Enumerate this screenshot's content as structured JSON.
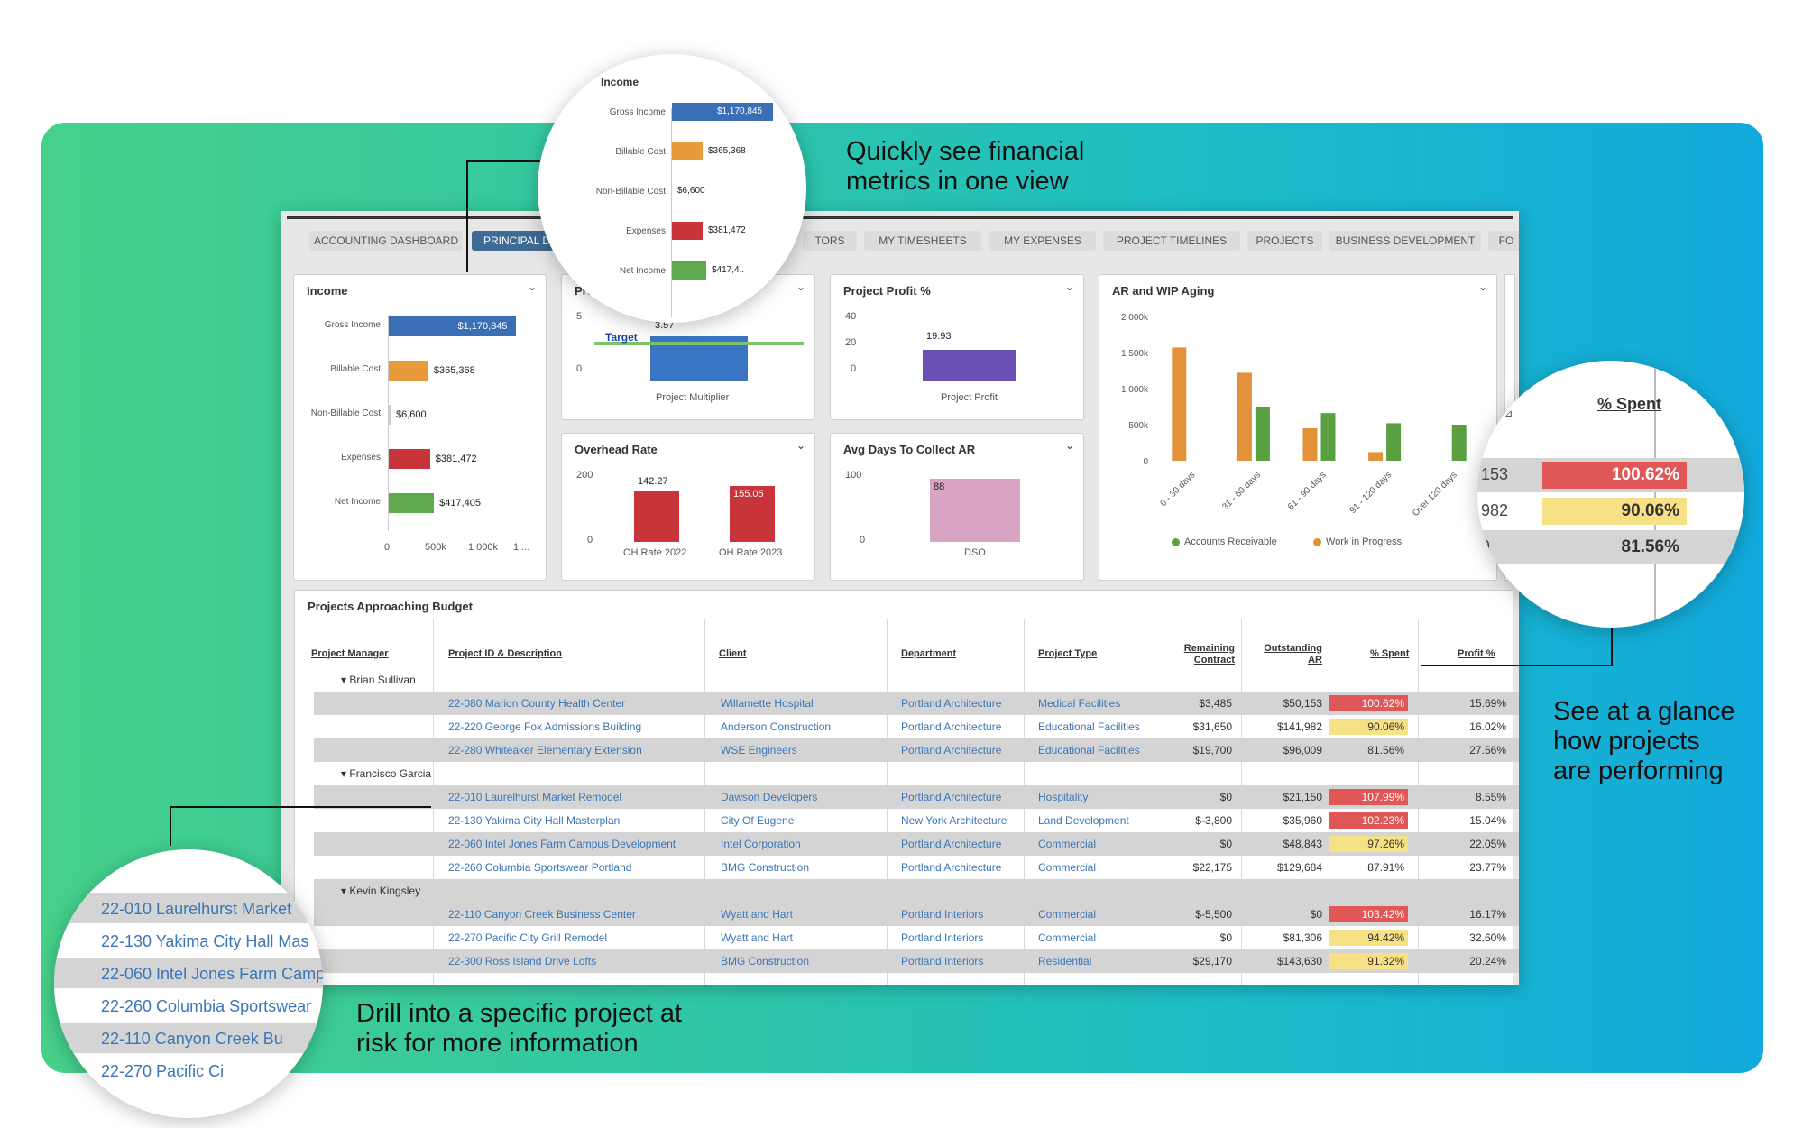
{
  "callouts": {
    "financial": [
      "Quickly see financial",
      "metrics in one view"
    ],
    "glance": [
      "See at a glance",
      "how projects",
      "are performing"
    ],
    "drill": [
      "Drill into a specific project at",
      "risk for more information"
    ]
  },
  "tabs": [
    "ACCOUNTING DASHBOARD",
    "PRINCIPAL D",
    "TORS",
    "MY TIMESHEETS",
    "MY EXPENSES",
    "PROJECT TIMELINES",
    "PROJECTS",
    "BUSINESS DEVELOPMENT",
    "FO"
  ],
  "income": {
    "title": "Income",
    "rows": [
      {
        "label": "Gross Income",
        "value": "$1,170,845",
        "amount": 1170845,
        "color": "#3a6fb5"
      },
      {
        "label": "Billable Cost",
        "value": "$365,368",
        "amount": 365368,
        "color": "#e89a3c"
      },
      {
        "label": "Non-Billable Cost",
        "value": "$6,600",
        "amount": 6600,
        "color": "#cccccc"
      },
      {
        "label": "Expenses",
        "value": "$381,472",
        "amount": 381472,
        "color": "#c9343b"
      },
      {
        "label": "Net Income",
        "value": "$417,405",
        "amount": 417405,
        "color": "#5ea84d"
      }
    ],
    "xticks": [
      "0",
      "500k",
      "1 000k",
      "1 ..."
    ]
  },
  "zoom_income": {
    "title": "Income",
    "rows": [
      {
        "label": "Gross Income",
        "value": "$1,170,845",
        "color": "#3a6fb5"
      },
      {
        "label": "Billable Cost",
        "value": "$365,368",
        "color": "#e89a3c"
      },
      {
        "label": "Non-Billable Cost",
        "value": "$6,600",
        "color": "#cccccc"
      },
      {
        "label": "Expenses",
        "value": "$381,472",
        "color": "#c9343b"
      },
      {
        "label": "Net Income",
        "value": "$417,4..",
        "color": "#5ea84d"
      }
    ]
  },
  "project_multiplier": {
    "title": "Proje",
    "ymax": "5",
    "ymin": "0",
    "target_label": "Target",
    "value": 3.57,
    "value_label": "3.57",
    "xlabel": "Project Multiplier"
  },
  "project_profit": {
    "title": "Project Profit %",
    "yticks": [
      "40",
      "20",
      "0"
    ],
    "value": 19.93,
    "value_label": "19.93",
    "xlabel": "Project Profit"
  },
  "overhead": {
    "title": "Overhead Rate",
    "ymax": "200",
    "ymin": "0",
    "bars": [
      {
        "label": "OH Rate 2022",
        "value": 142.27,
        "value_label": "142.27"
      },
      {
        "label": "OH Rate 2023",
        "value": 155.05,
        "value_label": "155.05"
      }
    ]
  },
  "dso": {
    "title": "Avg Days To Collect AR",
    "ymax": "100",
    "ymin": "0",
    "value": 88,
    "value_label": "88",
    "xlabel": "DSO"
  },
  "ar_wip": {
    "title": "AR and WIP Aging",
    "yticks": [
      "2 000k",
      "1 500k",
      "1 000k",
      "500k",
      "0"
    ],
    "legend": [
      "Accounts Receivable",
      "Work in Progress"
    ]
  },
  "chart_data": [
    {
      "type": "bar",
      "title": "AR and WIP Aging",
      "categories": [
        "0 - 30 days",
        "31 - 60 days",
        "61 - 90 days",
        "91 - 120 days",
        "Over 120 days"
      ],
      "series": [
        {
          "name": "Accounts Receivable",
          "color": "#5aa040",
          "values": [
            0,
            750000,
            660000,
            520000,
            500000
          ]
        },
        {
          "name": "Work in Progress",
          "color": "#e3923a",
          "values": [
            1570000,
            1220000,
            450000,
            120000,
            0
          ]
        }
      ],
      "ylim": [
        0,
        2000000
      ]
    }
  ],
  "table": {
    "title": "Projects Approaching Budget",
    "headers": {
      "manager": "Project Manager",
      "project": "Project ID & Description",
      "client": "Client",
      "department": "Department",
      "type": "Project Type",
      "remaining": [
        "Remaining",
        "Contract"
      ],
      "outstanding": [
        "Outstanding",
        "AR"
      ],
      "spent": "% Spent",
      "profit": "Profit %"
    },
    "groups": [
      {
        "manager": "Brian Sullivan",
        "rows": [
          {
            "project": "22-080 Marion County Health Center",
            "client": "Willamette Hospital",
            "department": "Portland Architecture",
            "type": "Medical Facilities",
            "remaining": "$3,485",
            "outstanding": "$50,153",
            "spent": "100.62%",
            "level": "red",
            "profit": "15.69%"
          },
          {
            "project": "22-220 George Fox Admissions Building",
            "client": "Anderson Construction",
            "department": "Portland Architecture",
            "type": "Educational Facilities",
            "remaining": "$31,650",
            "outstanding": "$141,982",
            "spent": "90.06%",
            "level": "yellow",
            "profit": "16.02%"
          },
          {
            "project": "22-280 Whiteaker Elementary Extension",
            "client": "WSE Engineers",
            "department": "Portland Architecture",
            "type": "Educational Facilities",
            "remaining": "$19,700",
            "outstanding": "$96,009",
            "spent": "81.56%",
            "level": "none",
            "profit": "27.56%"
          }
        ]
      },
      {
        "manager": "Francisco Garcia",
        "rows": [
          {
            "project": "22-010 Laurelhurst Market Remodel",
            "client": "Dawson Developers",
            "department": "Portland Architecture",
            "type": "Hospitality",
            "remaining": "$0",
            "outstanding": "$21,150",
            "spent": "107.99%",
            "level": "red",
            "profit": "8.55%"
          },
          {
            "project": "22-130 Yakima City Hall Masterplan",
            "client": "City Of Eugene",
            "department": "New York Architecture",
            "type": "Land Development",
            "remaining": "$-3,800",
            "outstanding": "$35,960",
            "spent": "102.23%",
            "level": "red",
            "profit": "15.04%"
          },
          {
            "project": "22-060 Intel Jones Farm Campus Development",
            "client": "Intel Corporation",
            "department": "Portland Architecture",
            "type": "Commercial",
            "remaining": "$0",
            "outstanding": "$48,843",
            "spent": "97.26%",
            "level": "yellow",
            "profit": "22.05%"
          },
          {
            "project": "22-260 Columbia Sportswear Portland",
            "client": "BMG Construction",
            "department": "Portland Architecture",
            "type": "Commercial",
            "remaining": "$22,175",
            "outstanding": "$129,684",
            "spent": "87.91%",
            "level": "none",
            "profit": "23.77%"
          }
        ]
      },
      {
        "manager": "Kevin Kingsley",
        "rows": [
          {
            "project": "22-110 Canyon Creek Business Center",
            "client": "Wyatt and Hart",
            "department": "Portland Interiors",
            "type": "Commercial",
            "remaining": "$-5,500",
            "outstanding": "$0",
            "spent": "103.42%",
            "level": "red",
            "profit": "16.17%"
          },
          {
            "project": "22-270 Pacific City Grill Remodel",
            "client": "Wyatt and Hart",
            "department": "Portland Interiors",
            "type": "Commercial",
            "remaining": "$0",
            "outstanding": "$81,306",
            "spent": "94.42%",
            "level": "yellow",
            "profit": "32.60%"
          },
          {
            "project": "22-300 Ross Island Drive Lofts",
            "client": "BMG Construction",
            "department": "Portland Interiors",
            "type": "Residential",
            "remaining": "$29,170",
            "outstanding": "$143,630",
            "spent": "91.32%",
            "level": "yellow",
            "profit": "20.24%"
          }
        ]
      }
    ]
  },
  "zoom_spent": {
    "header": "% Spent",
    "rows": [
      {
        "prefix": "153",
        "value": "100.62%",
        "level": "red"
      },
      {
        "prefix": "982",
        "value": "90.06%",
        "level": "yellow"
      },
      {
        "prefix": "9",
        "value": "81.56%",
        "level": "none"
      }
    ],
    "arrow": "⊿"
  },
  "zoom_projects": [
    "22-010 Laurelhurst Market",
    "22-130 Yakima City Hall Mas",
    "22-060 Intel Jones Farm Camp",
    "22-260 Columbia Sportswear",
    "22-110 Canyon Creek Bu",
    "22-270 Pacific Ci"
  ],
  "colors": {
    "accent": "#3f6a94",
    "link": "#3a76b8",
    "red": "#e05757",
    "yellow": "#f7e187"
  }
}
